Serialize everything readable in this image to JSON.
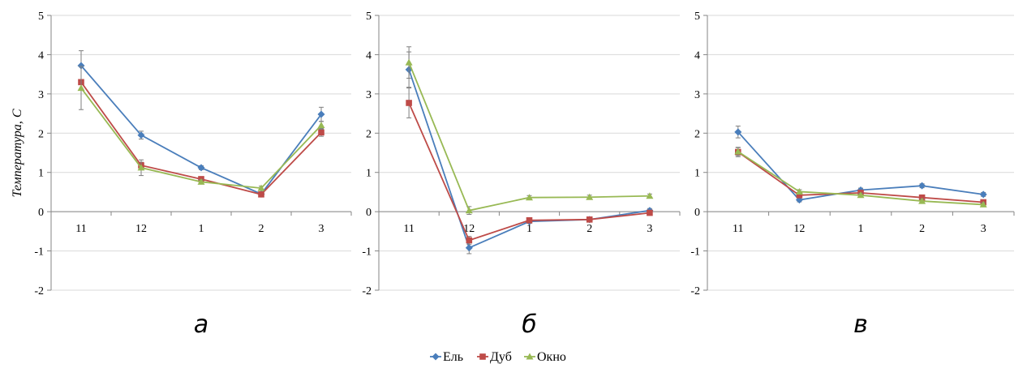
{
  "chart_data": {
    "type": "line",
    "ylabel": "Температура, С",
    "ylim": [
      -2,
      5
    ],
    "yticks": [
      "-2",
      "-1",
      "0",
      "1",
      "2",
      "3",
      "4",
      "5"
    ],
    "legend_position": "bottom-center",
    "legend": [
      "Ель",
      "Дуб",
      "Окно"
    ],
    "colors": {
      "Ель": "#4a7ebb",
      "Дуб": "#be4b48",
      "Окно": "#98b954"
    },
    "markers": {
      "Ель": "diamond",
      "Дуб": "square",
      "Окно": "triangle"
    },
    "panels": [
      {
        "label": "а",
        "categories": [
          "11",
          "12",
          "1",
          "2",
          "3"
        ],
        "series": [
          {
            "name": "Ель",
            "values": [
              3.72,
              1.95,
              1.12,
              0.45,
              2.48
            ],
            "errors": [
              0.38,
              0.1,
              0.05,
              0.05,
              0.18
            ]
          },
          {
            "name": "Дуб",
            "values": [
              3.3,
              1.18,
              0.83,
              0.44,
              2.02
            ],
            "errors": [
              0.0,
              0.08,
              0.05,
              0.05,
              0.1
            ]
          },
          {
            "name": "Окно",
            "values": [
              3.15,
              1.12,
              0.76,
              0.6,
              2.2
            ],
            "errors": [
              0.55,
              0.2,
              0.05,
              0.05,
              0.1
            ]
          }
        ]
      },
      {
        "label": "б",
        "categories": [
          "11",
          "12",
          "1",
          "2",
          "3"
        ],
        "series": [
          {
            "name": "Ель",
            "values": [
              3.62,
              -0.92,
              -0.25,
              -0.2,
              0.03
            ],
            "errors": [
              0.45,
              0.15,
              0.05,
              0.05,
              0.05
            ]
          },
          {
            "name": "Дуб",
            "values": [
              2.77,
              -0.73,
              -0.22,
              -0.2,
              -0.03
            ],
            "errors": [
              0.38,
              0.1,
              0.05,
              0.05,
              0.05
            ]
          },
          {
            "name": "Окно",
            "values": [
              3.8,
              0.03,
              0.36,
              0.37,
              0.4
            ],
            "errors": [
              0.4,
              0.1,
              0.05,
              0.05,
              0.05
            ]
          }
        ]
      },
      {
        "label": "в",
        "categories": [
          "11",
          "12",
          "1",
          "2",
          "3"
        ],
        "series": [
          {
            "name": "Ель",
            "values": [
              2.03,
              0.3,
              0.55,
              0.66,
              0.44
            ],
            "errors": [
              0.15,
              0.05,
              0.05,
              0.05,
              0.05
            ]
          },
          {
            "name": "Дуб",
            "values": [
              1.52,
              0.42,
              0.48,
              0.36,
              0.24
            ],
            "errors": [
              0.12,
              0.05,
              0.05,
              0.05,
              0.05
            ]
          },
          {
            "name": "Окно",
            "values": [
              1.53,
              0.51,
              0.42,
              0.27,
              0.18
            ],
            "errors": [
              0.1,
              0.05,
              0.05,
              0.05,
              0.05
            ]
          }
        ]
      }
    ]
  }
}
